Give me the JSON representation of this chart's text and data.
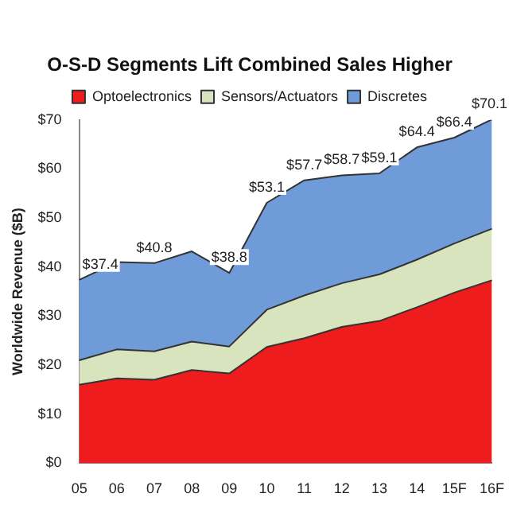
{
  "chart_data": {
    "type": "area",
    "title": "O-S-D Segments Lift Combined Sales Higher",
    "ylabel": "Worldwide Revenue ($B)",
    "categories": [
      "05",
      "06",
      "07",
      "08",
      "09",
      "10",
      "11",
      "12",
      "13",
      "14",
      "15F",
      "16F"
    ],
    "stacked": true,
    "legend": "top",
    "grid": false,
    "ylim": [
      0,
      70
    ],
    "yticks": [
      {
        "value": 0,
        "label": "$0"
      },
      {
        "value": 10,
        "label": "$10"
      },
      {
        "value": 20,
        "label": "$20"
      },
      {
        "value": 30,
        "label": "$30"
      },
      {
        "value": 40,
        "label": "$40"
      },
      {
        "value": 50,
        "label": "$50"
      },
      {
        "value": 60,
        "label": "$60"
      },
      {
        "value": 70,
        "label": "$70"
      }
    ],
    "series": [
      {
        "name": "Optoelectronics",
        "color": "#ee1c1c",
        "values": [
          16.0,
          17.3,
          17.0,
          19.0,
          18.3,
          23.7,
          25.5,
          27.8,
          29.0,
          31.8,
          34.8,
          37.3
        ]
      },
      {
        "name": "Sensors/Actuators",
        "color": "#d7e4bd",
        "values": [
          5.0,
          5.9,
          5.8,
          5.8,
          5.5,
          7.6,
          8.7,
          8.9,
          9.5,
          9.7,
          10.0,
          10.5
        ]
      },
      {
        "name": "Discretes",
        "color": "#6f9bd9",
        "values": [
          16.4,
          17.8,
          18.0,
          18.4,
          15.0,
          21.8,
          23.5,
          22.0,
          20.6,
          22.9,
          21.6,
          22.3
        ]
      }
    ],
    "totals": [
      "$37.4",
      null,
      "$40.8",
      null,
      "$38.8",
      "$53.1",
      "$57.7",
      "$58.7",
      "$59.1",
      "$64.4",
      "$66.4",
      "$70.1"
    ]
  }
}
